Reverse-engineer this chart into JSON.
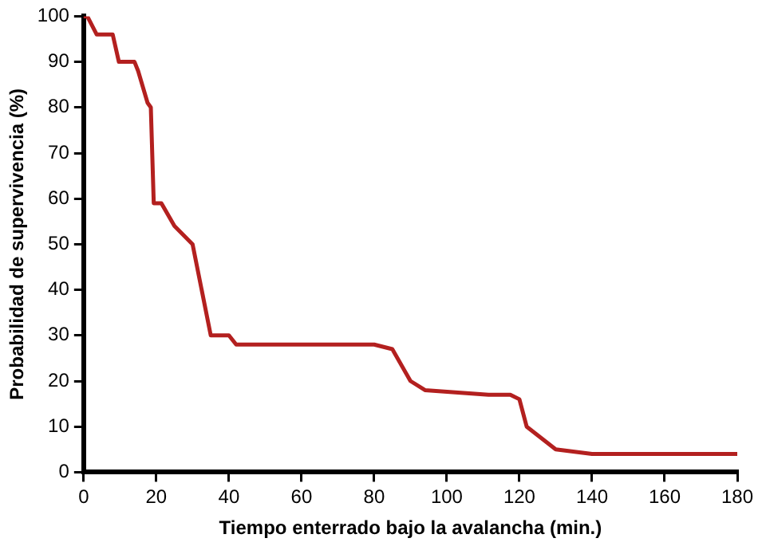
{
  "chart_data": {
    "type": "line",
    "xlabel": "Tiempo enterrado bajo la avalancha (min.)",
    "ylabel": "Probabilidad de supervivencia (%)",
    "x": [
      0,
      1,
      3.6,
      8,
      9.7,
      14,
      15,
      17.6,
      18.5,
      19.3,
      21.4,
      25,
      30,
      35,
      40,
      42,
      80,
      85,
      90,
      94,
      111.5,
      117.5,
      120,
      122,
      130,
      140,
      180
    ],
    "series": [
      {
        "color": "#b3201f",
        "values": [
          100,
          100,
          96,
          96,
          90,
          90,
          88,
          81,
          80,
          59,
          59,
          54,
          50,
          30,
          30,
          28,
          28,
          27,
          20,
          18,
          17,
          17,
          16,
          10,
          5,
          4,
          4
        ]
      }
    ],
    "xlim": [
      0,
      180
    ],
    "xticks": [
      0,
      20,
      40,
      60,
      80,
      100,
      120,
      140,
      160,
      180
    ],
    "ylim": [
      0,
      100
    ],
    "yticks": [
      0,
      10,
      20,
      30,
      40,
      50,
      60,
      70,
      80,
      90,
      100
    ],
    "grid": false,
    "legend": false,
    "marker": "none",
    "line_style": "solid"
  }
}
